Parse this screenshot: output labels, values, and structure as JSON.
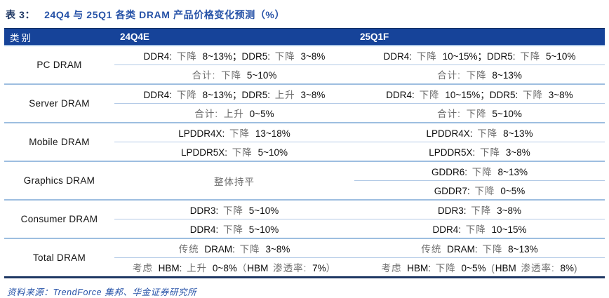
{
  "title": {
    "prefix": "表 3：",
    "text": "24Q4 与 25Q1 各类 DRAM 产品价格变化预测（%）"
  },
  "table": {
    "headers": [
      "类别",
      "24Q4E",
      "25Q1F"
    ],
    "categories": [
      {
        "name": "PC DRAM",
        "rows": [
          {
            "cells": [
              {
                "span": 1,
                "segs": [
                  [
                    "k",
                    "DDR4: "
                  ],
                  [
                    "g",
                    "下降 "
                  ],
                  [
                    "k",
                    "8~13%"
                  ],
                  [
                    "k",
                    "；DDR5: "
                  ],
                  [
                    "g",
                    "下降 "
                  ],
                  [
                    "k",
                    "3~8%"
                  ]
                ]
              },
              {
                "span": 1,
                "segs": [
                  [
                    "k",
                    "DDR4: "
                  ],
                  [
                    "g",
                    "下降 "
                  ],
                  [
                    "k",
                    "10~15%"
                  ],
                  [
                    "k",
                    "；DDR5: "
                  ],
                  [
                    "g",
                    "下降 "
                  ],
                  [
                    "k",
                    "5~10%"
                  ]
                ]
              }
            ]
          },
          {
            "cells": [
              {
                "span": 1,
                "segs": [
                  [
                    "g",
                    "合计: 下降 "
                  ],
                  [
                    "k",
                    "5~10%"
                  ]
                ]
              },
              {
                "span": 1,
                "segs": [
                  [
                    "g",
                    "合计: 下降 "
                  ],
                  [
                    "k",
                    "8~13%"
                  ]
                ]
              }
            ]
          }
        ]
      },
      {
        "name": "Server DRAM",
        "rows": [
          {
            "cells": [
              {
                "span": 1,
                "segs": [
                  [
                    "k",
                    "DDR4: "
                  ],
                  [
                    "g",
                    "下降 "
                  ],
                  [
                    "k",
                    "8~13%"
                  ],
                  [
                    "k",
                    "；DDR5: "
                  ],
                  [
                    "g",
                    "上升 "
                  ],
                  [
                    "k",
                    "3~8%"
                  ]
                ]
              },
              {
                "span": 1,
                "segs": [
                  [
                    "k",
                    "DDR4: "
                  ],
                  [
                    "g",
                    "下降 "
                  ],
                  [
                    "k",
                    "10~15%"
                  ],
                  [
                    "k",
                    "；DDR5: "
                  ],
                  [
                    "g",
                    "下降 "
                  ],
                  [
                    "k",
                    "3~8%"
                  ]
                ]
              }
            ]
          },
          {
            "cells": [
              {
                "span": 1,
                "segs": [
                  [
                    "g",
                    "合计: 上升 "
                  ],
                  [
                    "k",
                    "0~5%"
                  ]
                ]
              },
              {
                "span": 1,
                "segs": [
                  [
                    "g",
                    "合计: 下降 "
                  ],
                  [
                    "k",
                    "5~10%"
                  ]
                ]
              }
            ]
          }
        ]
      },
      {
        "name": "Mobile DRAM",
        "rows": [
          {
            "cells": [
              {
                "span": 1,
                "segs": [
                  [
                    "k",
                    "LPDDR4X: "
                  ],
                  [
                    "g",
                    "下降 "
                  ],
                  [
                    "k",
                    "13~18%"
                  ]
                ]
              },
              {
                "span": 1,
                "segs": [
                  [
                    "k",
                    "LPDDR4X: "
                  ],
                  [
                    "g",
                    "下降 "
                  ],
                  [
                    "k",
                    "8~13%"
                  ]
                ]
              }
            ]
          },
          {
            "cells": [
              {
                "span": 1,
                "segs": [
                  [
                    "k",
                    "LPDDR5X: "
                  ],
                  [
                    "g",
                    "下降 "
                  ],
                  [
                    "k",
                    "5~10%"
                  ]
                ]
              },
              {
                "span": 1,
                "segs": [
                  [
                    "k",
                    "LPDDR5X: "
                  ],
                  [
                    "g",
                    "下降 "
                  ],
                  [
                    "k",
                    "3~8%"
                  ]
                ]
              }
            ]
          }
        ]
      },
      {
        "name": "Graphics DRAM",
        "rows": [
          {
            "cells": [
              {
                "span": 2,
                "segs": [
                  [
                    "g",
                    "整体持平"
                  ]
                ]
              },
              {
                "span": 1,
                "segs": [
                  [
                    "k",
                    "GDDR6: "
                  ],
                  [
                    "g",
                    "下降 "
                  ],
                  [
                    "k",
                    "8~13%"
                  ]
                ]
              }
            ]
          },
          {
            "cells": [
              {
                "span": 1,
                "segs": [
                  [
                    "k",
                    "GDDR7: "
                  ],
                  [
                    "g",
                    "下降 "
                  ],
                  [
                    "k",
                    "0~5%"
                  ]
                ]
              }
            ]
          }
        ]
      },
      {
        "name": "Consumer DRAM",
        "rows": [
          {
            "cells": [
              {
                "span": 1,
                "segs": [
                  [
                    "k",
                    "DDR3: "
                  ],
                  [
                    "g",
                    "下降 "
                  ],
                  [
                    "k",
                    "5~10%"
                  ]
                ]
              },
              {
                "span": 1,
                "segs": [
                  [
                    "k",
                    "DDR3: "
                  ],
                  [
                    "g",
                    "下降 "
                  ],
                  [
                    "k",
                    "3~8%"
                  ]
                ]
              }
            ]
          },
          {
            "cells": [
              {
                "span": 1,
                "segs": [
                  [
                    "k",
                    "DDR4: "
                  ],
                  [
                    "g",
                    "下降 "
                  ],
                  [
                    "k",
                    "5~10%"
                  ]
                ]
              },
              {
                "span": 1,
                "segs": [
                  [
                    "k",
                    "DDR4: "
                  ],
                  [
                    "g",
                    "下降 "
                  ],
                  [
                    "k",
                    "10~15%"
                  ]
                ]
              }
            ]
          }
        ]
      },
      {
        "name": "Total DRAM",
        "rows": [
          {
            "cells": [
              {
                "span": 1,
                "segs": [
                  [
                    "g",
                    "传统 "
                  ],
                  [
                    "k",
                    "DRAM: "
                  ],
                  [
                    "g",
                    "下降 "
                  ],
                  [
                    "k",
                    "3~8%"
                  ]
                ]
              },
              {
                "span": 1,
                "segs": [
                  [
                    "g",
                    "传统 "
                  ],
                  [
                    "k",
                    "DRAM: "
                  ],
                  [
                    "g",
                    "下降 "
                  ],
                  [
                    "k",
                    "8~13%"
                  ]
                ]
              }
            ]
          },
          {
            "cells": [
              {
                "span": 1,
                "segs": [
                  [
                    "g",
                    "考虑 "
                  ],
                  [
                    "k",
                    "HBM: "
                  ],
                  [
                    "g",
                    "上升 "
                  ],
                  [
                    "k",
                    "0~8%"
                  ],
                  [
                    "g",
                    "（"
                  ],
                  [
                    "k",
                    "HBM "
                  ],
                  [
                    "g",
                    "渗透率: "
                  ],
                  [
                    "k",
                    "7%"
                  ],
                  [
                    "g",
                    "）"
                  ]
                ]
              },
              {
                "span": 1,
                "segs": [
                  [
                    "g",
                    "考虑 "
                  ],
                  [
                    "k",
                    "HBM: "
                  ],
                  [
                    "g",
                    "下降 "
                  ],
                  [
                    "k",
                    "0~5%"
                  ],
                  [
                    "g",
                    " ("
                  ],
                  [
                    "k",
                    "HBM "
                  ],
                  [
                    "g",
                    "渗透率: "
                  ],
                  [
                    "k",
                    "8%"
                  ],
                  [
                    "g",
                    ")"
                  ]
                ]
              }
            ]
          }
        ]
      }
    ]
  },
  "footer": {
    "text": "资料来源：TrendForce 集邦、华金证券研究所"
  },
  "colors": {
    "header_bg": "#164399",
    "title_blue": "#2753a8",
    "divider_light": "#a9c4e4",
    "border_dark": "#1f3864",
    "muted_text": "#6e6e6e"
  }
}
